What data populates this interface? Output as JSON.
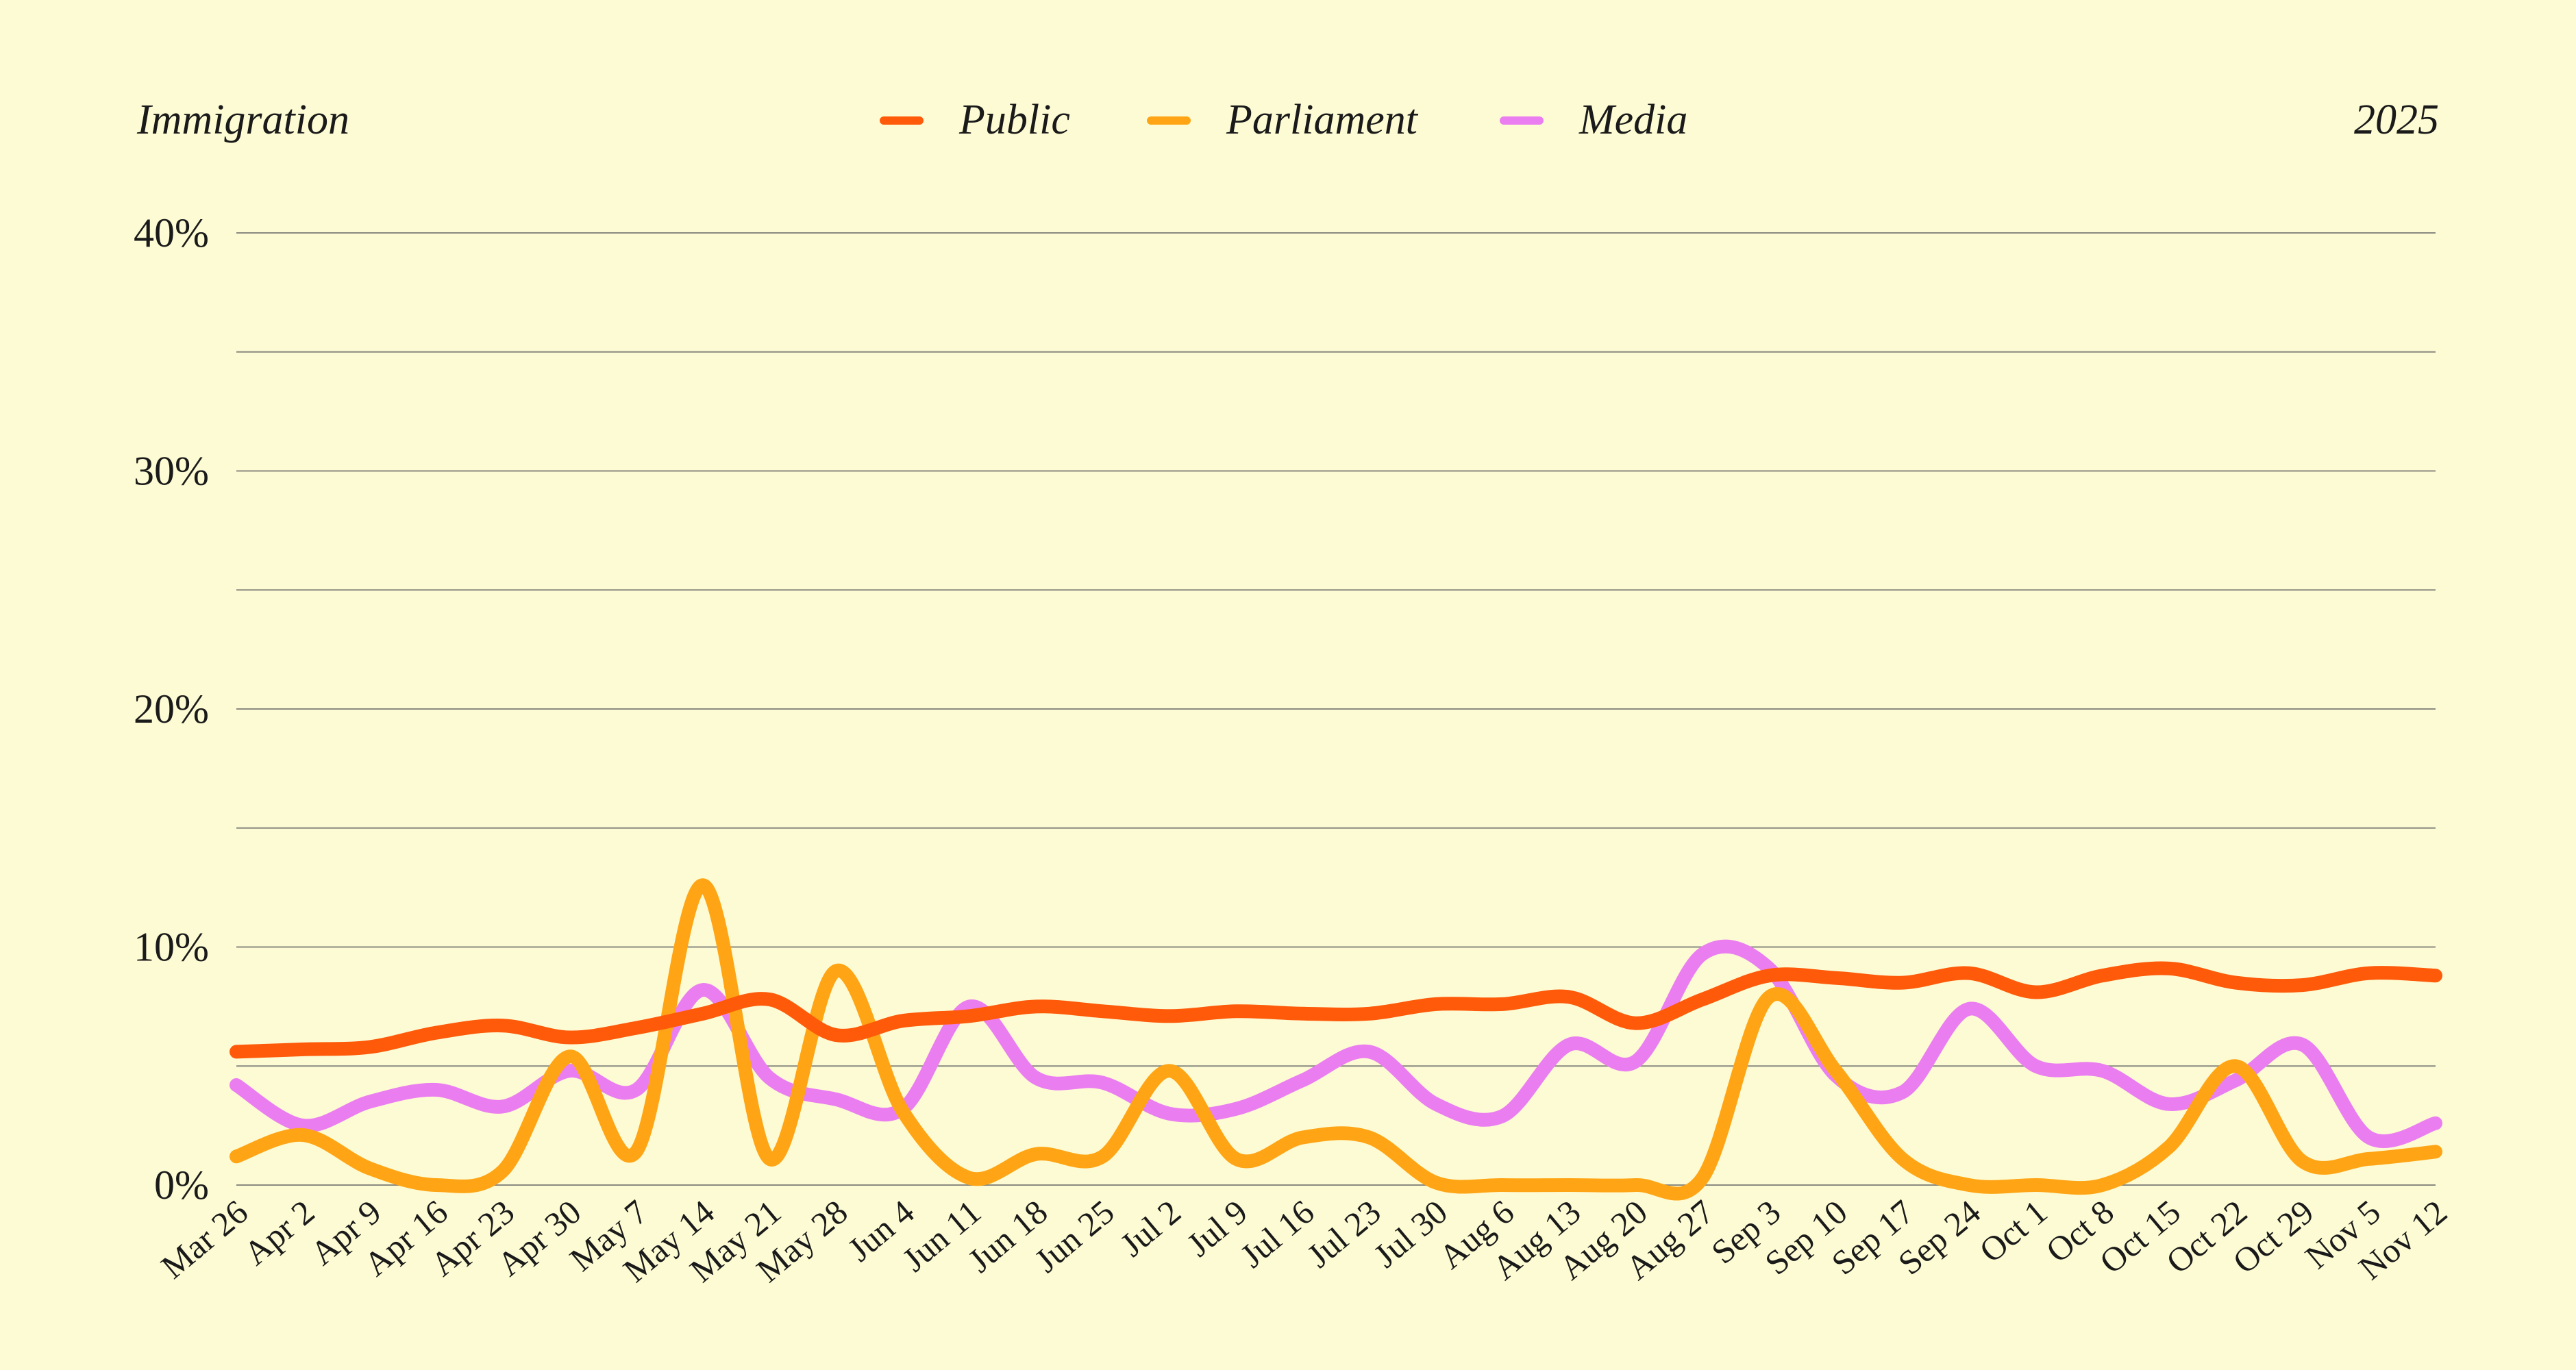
{
  "header": {
    "title": "Immigration",
    "year": "2025"
  },
  "chart_data": {
    "type": "line",
    "title": "Immigration",
    "xlabel": "",
    "ylabel": "",
    "ylim": [
      0,
      40
    ],
    "y_ticks": [
      "0%",
      "10%",
      "20%",
      "30%",
      "40%"
    ],
    "y_tick_values": [
      0,
      10,
      20,
      30,
      40
    ],
    "grid": true,
    "legend": "top-center",
    "categories": [
      "Mar 26",
      "Apr 2",
      "Apr 9",
      "Apr 16",
      "Apr 23",
      "Apr 30",
      "May 7",
      "May 14",
      "May 21",
      "May 28",
      "Jun 4",
      "Jun 11",
      "Jun 18",
      "Jun 25",
      "Jul 2",
      "Jul 9",
      "Jul 16",
      "Jul 23",
      "Jul 30",
      "Aug 6",
      "Aug 13",
      "Aug 20",
      "Aug 27",
      "Sep 3",
      "Sep 10",
      "Sep 17",
      "Sep 24",
      "Oct 1",
      "Oct 8",
      "Oct 15",
      "Oct 22",
      "Oct 29",
      "Nov 5",
      "Nov 12"
    ],
    "series": [
      {
        "name": "Public",
        "color": "#ff5a0a",
        "values": [
          5.6,
          5.7,
          5.8,
          6.4,
          6.7,
          6.2,
          6.6,
          7.2,
          7.8,
          6.3,
          6.9,
          7.1,
          7.5,
          7.3,
          7.1,
          7.3,
          7.2,
          7.2,
          7.6,
          7.6,
          7.9,
          6.8,
          7.8,
          8.8,
          8.7,
          8.5,
          8.9,
          8.1,
          8.8,
          9.1,
          8.5,
          8.4,
          8.9,
          8.8
        ]
      },
      {
        "name": "Parliament",
        "color": "#ffa515",
        "values": [
          1.2,
          2.1,
          0.7,
          0.0,
          0.6,
          5.4,
          1.4,
          12.6,
          1.1,
          9.0,
          3.1,
          0.3,
          1.3,
          1.2,
          4.8,
          1.1,
          2.0,
          2.0,
          0.1,
          0.0,
          0.0,
          0.0,
          0.3,
          7.9,
          4.8,
          1.1,
          0.0,
          0.0,
          0.0,
          1.6,
          5.0,
          1.0,
          1.1,
          1.4
        ]
      },
      {
        "name": "Media",
        "color": "#ea7ef0",
        "values": [
          4.2,
          2.5,
          3.5,
          4.0,
          3.3,
          4.8,
          4.0,
          8.2,
          4.5,
          3.6,
          3.2,
          7.5,
          4.5,
          4.3,
          3.0,
          3.2,
          4.4,
          5.6,
          3.4,
          2.9,
          5.9,
          5.2,
          9.7,
          9.1,
          4.6,
          3.9,
          7.4,
          5.0,
          4.8,
          3.4,
          4.4,
          5.9,
          2.0,
          2.6
        ]
      }
    ]
  }
}
